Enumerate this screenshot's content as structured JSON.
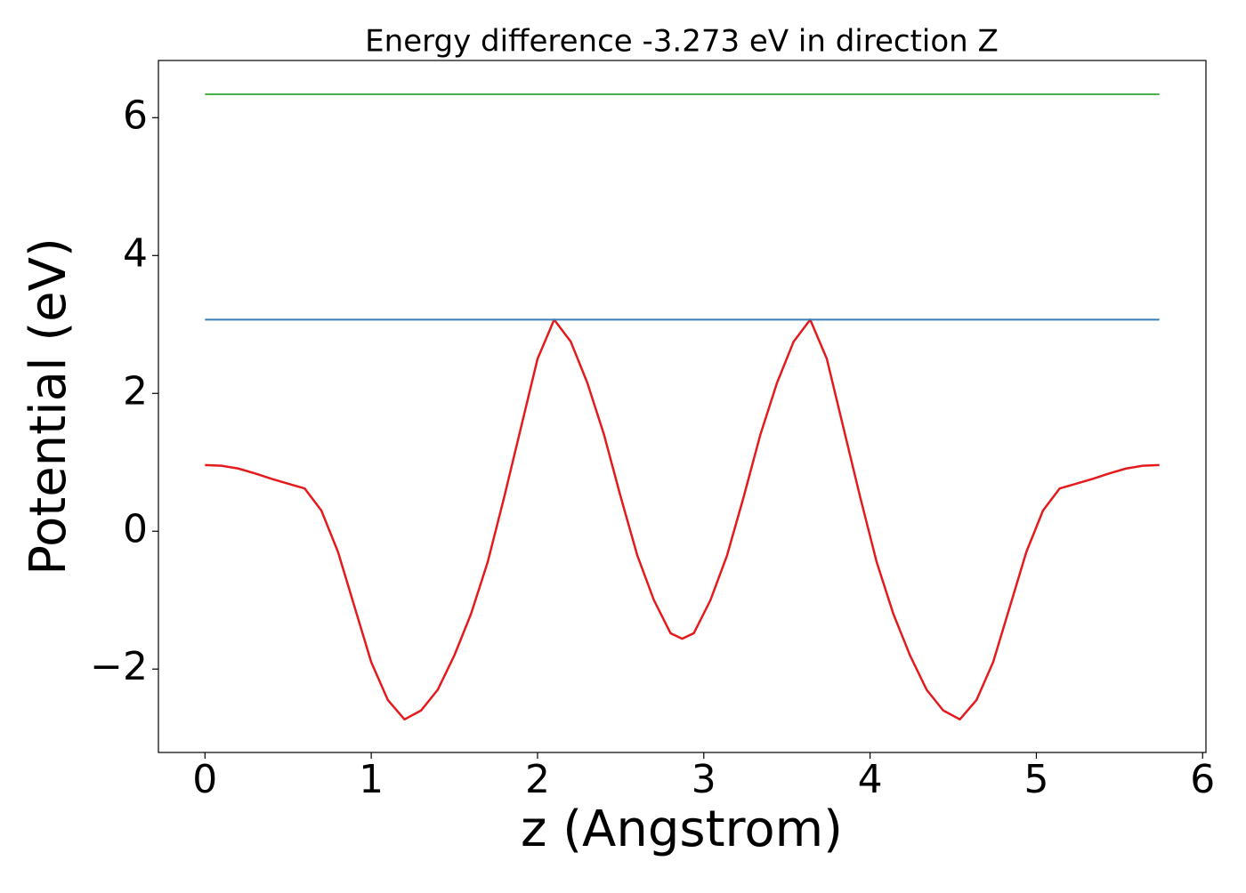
{
  "chart_data": {
    "type": "line",
    "title": "Energy difference -3.273 eV in direction Z",
    "xlabel": "z (Angstrom)",
    "ylabel": "Potential (eV)",
    "xlim": [
      -0.28,
      6.02
    ],
    "ylim": [
      -3.21,
      6.83
    ],
    "xticks": [
      0,
      1,
      2,
      3,
      4,
      5,
      6
    ],
    "yticks": [
      {
        "value": -2,
        "label": "−2"
      },
      0,
      2,
      4,
      6
    ],
    "grid": false,
    "series": [
      {
        "color": "#e41a1c",
        "x": [
          0,
          0.1,
          0.2,
          0.3,
          0.4,
          0.5,
          0.6,
          0.7,
          0.8,
          0.9,
          1.0,
          1.1,
          1.2,
          1.3,
          1.4,
          1.5,
          1.6,
          1.7,
          1.8,
          1.9,
          2.0,
          2.1,
          2.2,
          2.3,
          2.4,
          2.5,
          2.6,
          2.7,
          2.8,
          2.87,
          2.94,
          3.04,
          3.14,
          3.24,
          3.34,
          3.44,
          3.54,
          3.64,
          3.74,
          3.84,
          3.94,
          4.04,
          4.14,
          4.24,
          4.34,
          4.44,
          4.54,
          4.64,
          4.74,
          4.84,
          4.94,
          5.04,
          5.14,
          5.24,
          5.34,
          5.44,
          5.54,
          5.64,
          5.74
        ],
        "values": [
          0.96,
          0.95,
          0.91,
          0.84,
          0.76,
          0.69,
          0.62,
          0.3,
          -0.3,
          -1.1,
          -1.9,
          -2.45,
          -2.73,
          -2.6,
          -2.3,
          -1.8,
          -1.2,
          -0.45,
          0.5,
          1.5,
          2.5,
          3.07,
          2.75,
          2.15,
          1.4,
          0.5,
          -0.35,
          -1.0,
          -1.48,
          -1.56,
          -1.48,
          -1.0,
          -0.35,
          0.5,
          1.4,
          2.15,
          2.75,
          3.07,
          2.5,
          1.5,
          0.5,
          -0.45,
          -1.2,
          -1.8,
          -2.3,
          -2.6,
          -2.73,
          -2.45,
          -1.9,
          -1.1,
          -0.3,
          0.3,
          0.62,
          0.69,
          0.76,
          0.84,
          0.91,
          0.95,
          0.96
        ]
      },
      {
        "color": "#377eb8",
        "x": [
          0,
          5.74
        ],
        "values": [
          3.07,
          3.07
        ]
      },
      {
        "color": "#4daf4a",
        "x": [
          0,
          5.74
        ],
        "values": [
          6.34,
          6.34
        ]
      }
    ]
  }
}
